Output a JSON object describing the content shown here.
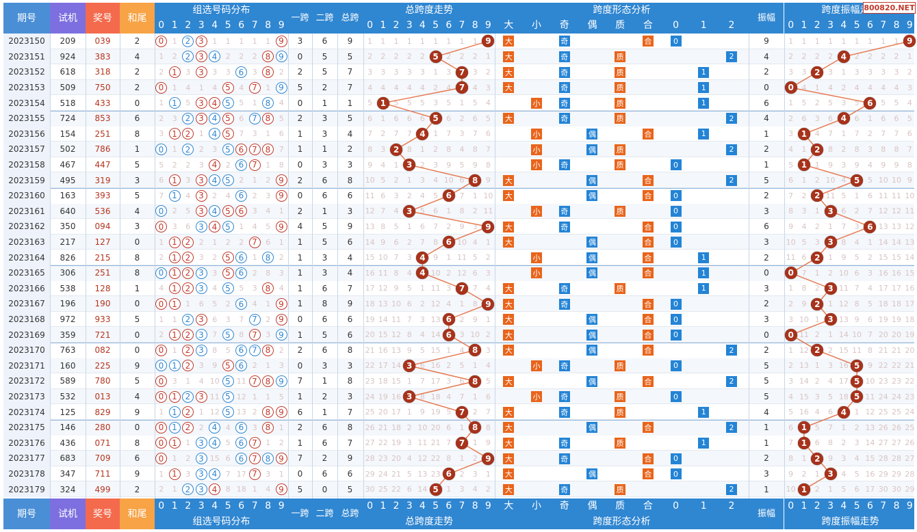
{
  "headers": {
    "period": "期号",
    "trial": "试机",
    "prize": "奖号",
    "tail": "和尾",
    "dist": "组选号码分布",
    "span1": "一跨",
    "span2": "二跨",
    "spantotal": "总跨",
    "trend": "总跨度走势",
    "form": "跨度形态分析",
    "amp": "振幅",
    "amptrend": "跨度振幅走势"
  },
  "digits": [
    "0",
    "1",
    "2",
    "3",
    "4",
    "5",
    "6",
    "7",
    "8",
    "9"
  ],
  "form_labels": [
    "大",
    "小",
    "奇",
    "偶",
    "质",
    "合",
    "0",
    "1",
    "2"
  ],
  "brand": "800820.NET",
  "colors": {
    "period": "#4a8fd6",
    "trial": "#7d6fdf",
    "prize": "#f36a4d",
    "tail": "#f7a346",
    "table": "#2f86d1",
    "ball": "#a8321a",
    "orange": "#e8641b",
    "blue": "#2384d6",
    "line": "#e67a52"
  },
  "rows": [
    {
      "p": "2023150",
      "t": "209",
      "k": "039",
      "w": "2",
      "s1": "3",
      "s2": "6",
      "st": "9",
      "amp": "9"
    },
    {
      "p": "2023151",
      "t": "924",
      "k": "383",
      "w": "4",
      "s1": "0",
      "s2": "5",
      "st": "5",
      "amp": "4"
    },
    {
      "p": "2023152",
      "t": "618",
      "k": "318",
      "w": "2",
      "s1": "2",
      "s2": "5",
      "st": "7",
      "amp": "2"
    },
    {
      "p": "2023153",
      "t": "509",
      "k": "750",
      "w": "2",
      "s1": "5",
      "s2": "2",
      "st": "7",
      "amp": "0"
    },
    {
      "p": "2023154",
      "t": "518",
      "k": "433",
      "w": "0",
      "s1": "0",
      "s2": "1",
      "st": "1",
      "amp": "6"
    },
    {
      "p": "2023155",
      "t": "724",
      "k": "853",
      "w": "6",
      "s1": "2",
      "s2": "3",
      "st": "5",
      "amp": "4"
    },
    {
      "p": "2023156",
      "t": "154",
      "k": "251",
      "w": "8",
      "s1": "1",
      "s2": "3",
      "st": "4",
      "amp": "1"
    },
    {
      "p": "2023157",
      "t": "502",
      "k": "786",
      "w": "1",
      "s1": "1",
      "s2": "1",
      "st": "2",
      "amp": "2"
    },
    {
      "p": "2023158",
      "t": "467",
      "k": "447",
      "w": "5",
      "s1": "0",
      "s2": "3",
      "st": "3",
      "amp": "1"
    },
    {
      "p": "2023159",
      "t": "495",
      "k": "319",
      "w": "3",
      "s1": "2",
      "s2": "6",
      "st": "8",
      "amp": "5"
    },
    {
      "p": "2023160",
      "t": "163",
      "k": "393",
      "w": "5",
      "s1": "0",
      "s2": "6",
      "st": "6",
      "amp": "2"
    },
    {
      "p": "2023161",
      "t": "640",
      "k": "536",
      "w": "4",
      "s1": "2",
      "s2": "1",
      "st": "3",
      "amp": "3"
    },
    {
      "p": "2023162",
      "t": "350",
      "k": "094",
      "w": "3",
      "s1": "4",
      "s2": "5",
      "st": "9",
      "amp": "6"
    },
    {
      "p": "2023163",
      "t": "217",
      "k": "127",
      "w": "0",
      "s1": "1",
      "s2": "5",
      "st": "6",
      "amp": "3"
    },
    {
      "p": "2023164",
      "t": "826",
      "k": "215",
      "w": "8",
      "s1": "1",
      "s2": "3",
      "st": "4",
      "amp": "2"
    },
    {
      "p": "2023165",
      "t": "306",
      "k": "251",
      "w": "8",
      "s1": "1",
      "s2": "3",
      "st": "4",
      "amp": "0"
    },
    {
      "p": "2023166",
      "t": "538",
      "k": "128",
      "w": "1",
      "s1": "1",
      "s2": "6",
      "st": "7",
      "amp": "3"
    },
    {
      "p": "2023167",
      "t": "196",
      "k": "190",
      "w": "0",
      "s1": "1",
      "s2": "8",
      "st": "9",
      "amp": "2"
    },
    {
      "p": "2023168",
      "t": "972",
      "k": "933",
      "w": "5",
      "s1": "0",
      "s2": "6",
      "st": "6",
      "amp": "3"
    },
    {
      "p": "2023169",
      "t": "359",
      "k": "721",
      "w": "0",
      "s1": "1",
      "s2": "5",
      "st": "6",
      "amp": "0"
    },
    {
      "p": "2023170",
      "t": "763",
      "k": "082",
      "w": "0",
      "s1": "2",
      "s2": "6",
      "st": "8",
      "amp": "2"
    },
    {
      "p": "2023171",
      "t": "160",
      "k": "225",
      "w": "9",
      "s1": "0",
      "s2": "3",
      "st": "3",
      "amp": "5"
    },
    {
      "p": "2023172",
      "t": "589",
      "k": "780",
      "w": "5",
      "s1": "7",
      "s2": "1",
      "st": "8",
      "amp": "5"
    },
    {
      "p": "2023173",
      "t": "532",
      "k": "013",
      "w": "4",
      "s1": "1",
      "s2": "2",
      "st": "3",
      "amp": "5"
    },
    {
      "p": "2023174",
      "t": "125",
      "k": "829",
      "w": "9",
      "s1": "6",
      "s2": "1",
      "st": "7",
      "amp": "4"
    },
    {
      "p": "2023175",
      "t": "146",
      "k": "280",
      "w": "0",
      "s1": "2",
      "s2": "6",
      "st": "8",
      "amp": "1"
    },
    {
      "p": "2023176",
      "t": "436",
      "k": "071",
      "w": "8",
      "s1": "1",
      "s2": "6",
      "st": "7",
      "amp": "1"
    },
    {
      "p": "2023177",
      "t": "683",
      "k": "709",
      "w": "6",
      "s1": "7",
      "s2": "2",
      "st": "9",
      "amp": "2"
    },
    {
      "p": "2023178",
      "t": "347",
      "k": "711",
      "w": "9",
      "s1": "0",
      "s2": "6",
      "st": "6",
      "amp": "3"
    },
    {
      "p": "2023179",
      "t": "324",
      "k": "499",
      "w": "2",
      "s1": "5",
      "s2": "0",
      "st": "5",
      "amp": "1"
    }
  ]
}
